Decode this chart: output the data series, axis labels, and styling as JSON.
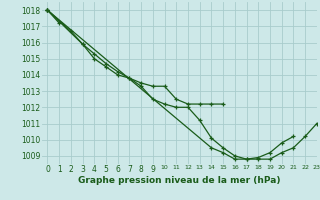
{
  "title": "Graphe pression niveau de la mer (hPa)",
  "bg_color": "#cde8e8",
  "grid_color": "#a8cccc",
  "line_color": "#1a5c1a",
  "marker": "+",
  "xlim": [
    -0.5,
    23
  ],
  "ylim": [
    1008.5,
    1018.5
  ],
  "xticks": [
    0,
    1,
    2,
    3,
    4,
    5,
    6,
    7,
    8,
    9,
    10,
    11,
    12,
    13,
    14,
    15,
    16,
    17,
    18,
    19,
    20,
    21,
    22,
    23
  ],
  "yticks": [
    1009,
    1010,
    1011,
    1012,
    1013,
    1014,
    1015,
    1016,
    1017,
    1018
  ],
  "series": [
    [
      1018.0,
      1017.2,
      null,
      null,
      null,
      null,
      null,
      null,
      null,
      null,
      null,
      null,
      null,
      null,
      null,
      null,
      null,
      null,
      null,
      null,
      null,
      null,
      null,
      null
    ],
    [
      1018.0,
      null,
      1016.7,
      1015.9,
      1015.0,
      1014.5,
      1014.0,
      1013.8,
      1013.5,
      1013.3,
      1013.3,
      1012.5,
      1012.2,
      1012.2,
      1012.2,
      1012.2,
      null,
      null,
      null,
      null,
      null,
      null,
      null,
      null
    ],
    [
      1018.0,
      null,
      null,
      1015.9,
      1015.3,
      1014.7,
      1014.2,
      1013.8,
      1013.3,
      1012.5,
      1012.2,
      1012.0,
      1012.0,
      1011.2,
      1010.1,
      1009.5,
      1009.0,
      1008.8,
      1008.9,
      1009.2,
      1009.8,
      1010.2,
      null,
      null
    ],
    [
      1018.0,
      null,
      null,
      null,
      null,
      null,
      null,
      null,
      null,
      null,
      null,
      null,
      null,
      null,
      1009.5,
      1009.2,
      1008.8,
      1008.8,
      1008.8,
      1008.8,
      1009.2,
      1009.5,
      1010.2,
      1011.0
    ]
  ],
  "xlabel_fontsize": 6.5,
  "tick_fontsize": 5.5
}
